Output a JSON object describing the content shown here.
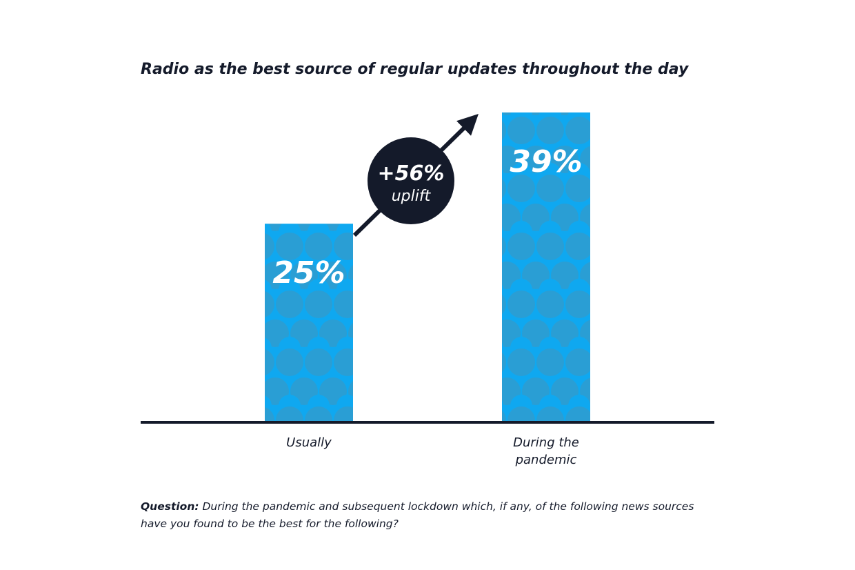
{
  "chart_data": {
    "type": "bar",
    "title": "Radio as the best source of regular updates throughout the day",
    "categories": [
      "Usually",
      "During the pandemic"
    ],
    "values": [
      25,
      39
    ],
    "value_labels": [
      "25%",
      "39%"
    ],
    "ylim": [
      0,
      39
    ],
    "grid": false,
    "legend": "none",
    "colors": {
      "bar": "#0fa8f0",
      "bar_pattern": "#2a9ed4",
      "axis": "#141a2a",
      "badge": "#141a2a",
      "label": "#ffffff"
    },
    "annotation": {
      "value": "+56%",
      "text": "uplift"
    }
  },
  "footnote": {
    "label": "Question:",
    "text": "During the pandemic and subsequent lockdown which, if any, of the following news sources have you found to be the best for the following?"
  }
}
